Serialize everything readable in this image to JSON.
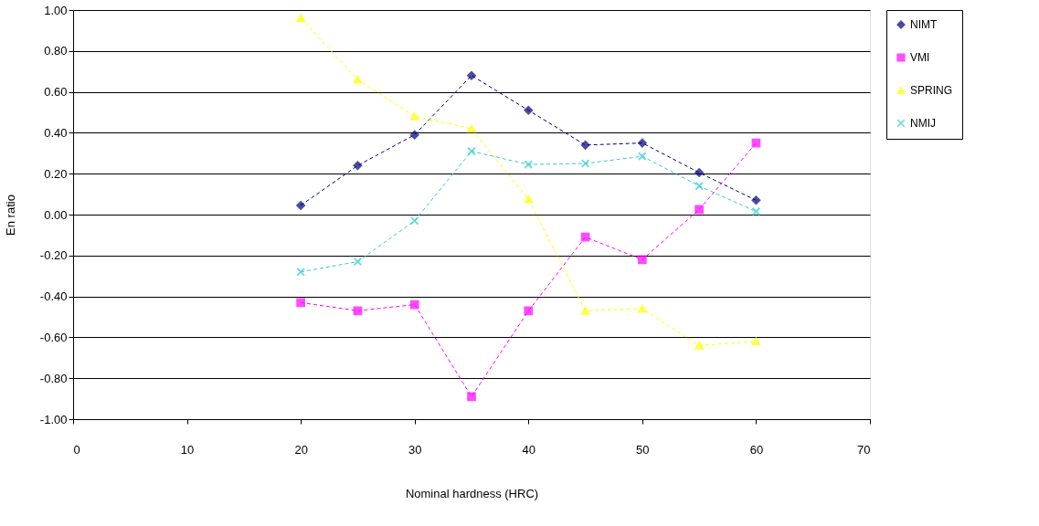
{
  "chart_data": {
    "type": "line",
    "xlabel": "Nominal hardness (HRC)",
    "ylabel": "En ratio",
    "x": [
      20,
      25,
      30,
      35,
      40,
      45,
      50,
      55,
      60
    ],
    "series": [
      {
        "name": "NIMT",
        "color": "#000080",
        "marker": "diamond",
        "values": [
          0.045,
          0.24,
          0.39,
          0.68,
          0.51,
          0.34,
          0.35,
          0.205,
          0.07
        ]
      },
      {
        "name": "VMI",
        "color": "#ff00ff",
        "marker": "square",
        "values": [
          -0.43,
          -0.47,
          -0.44,
          -0.89,
          -0.47,
          -0.11,
          -0.22,
          0.025,
          0.35
        ]
      },
      {
        "name": "SPRING",
        "color": "#ffff00",
        "marker": "triangle",
        "values": [
          0.96,
          0.66,
          0.48,
          0.42,
          0.075,
          -0.47,
          -0.46,
          -0.64,
          -0.62
        ]
      },
      {
        "name": "NMIJ",
        "color": "#33cccc",
        "marker": "cross",
        "values": [
          -0.28,
          -0.23,
          -0.03,
          0.31,
          0.245,
          0.25,
          0.285,
          0.14,
          0.015
        ]
      }
    ],
    "xlim": [
      0,
      70
    ],
    "xticks": [
      0,
      10,
      20,
      30,
      40,
      50,
      60,
      70
    ],
    "ylim": [
      -1.0,
      1.0
    ],
    "yticks": [
      {
        "value": -1.0,
        "label": "-1.00"
      },
      {
        "value": -0.8,
        "label": "-0.80"
      },
      {
        "value": -0.6,
        "label": "-0.60"
      },
      {
        "value": -0.4,
        "label": "-0.40"
      },
      {
        "value": -0.2,
        "label": "-0.20"
      },
      {
        "value": 0.0,
        "label": "0.00"
      },
      {
        "value": 0.2,
        "label": "0.20"
      },
      {
        "value": 0.4,
        "label": "0.40"
      },
      {
        "value": 0.6,
        "label": "0.60"
      },
      {
        "value": 0.8,
        "label": "0.80"
      },
      {
        "value": 1.0,
        "label": "1.00"
      }
    ],
    "grid": "y",
    "legend": "right",
    "line_style": "dashed"
  }
}
